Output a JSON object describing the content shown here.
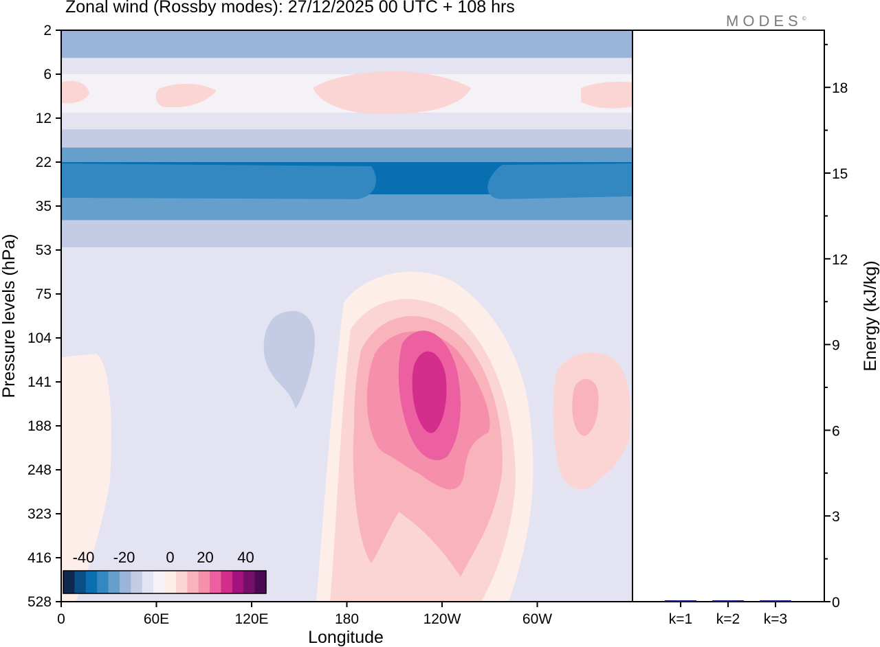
{
  "page": {
    "title": "Zonal wind (Rossby modes):  27/12/2025  00 UTC  + 108 hrs",
    "logo": "MODES",
    "logo_mark": "©"
  },
  "chart_data": [
    {
      "type": "heatmap",
      "title": "Zonal wind (Rossby modes)",
      "xlabel": "Longitude",
      "ylabel": "Pressure levels (hPa)",
      "x_ticks": [
        "0",
        "60E",
        "120E",
        "180",
        "120W",
        "60W"
      ],
      "x_tick_degrees": [
        0,
        60,
        120,
        180,
        240,
        300
      ],
      "xlim": [
        0,
        360
      ],
      "y_ticks": [
        "2",
        "6",
        "12",
        "22",
        "35",
        "53",
        "75",
        "104",
        "141",
        "188",
        "248",
        "323",
        "416",
        "528"
      ],
      "colorbar": {
        "tick_labels": [
          "-40",
          "-20",
          "0",
          "20",
          "40"
        ],
        "range": [
          -50,
          50
        ],
        "step": 6.25,
        "colors": [
          "#0d2a4e",
          "#0b4f86",
          "#0a6fb0",
          "#3388c2",
          "#669fcc",
          "#9ab5d9",
          "#c3cbe5",
          "#e3e3f1",
          "#f5f2f7",
          "#fdeeea",
          "#fbd5d4",
          "#f9b4bb",
          "#f58fac",
          "#ec5fa0",
          "#d42e8c",
          "#a3127c",
          "#741069",
          "#4d0a54"
        ]
      },
      "field_description": "zonal-mean band structure; strong easterlies near 22-35 hPa, westerly jet core near 120W at 141 hPa",
      "field_bands": [
        {
          "p_top": 2,
          "p_bottom": 4,
          "u": -18
        },
        {
          "p_top": 4,
          "p_bottom": 6,
          "u": -5
        },
        {
          "p_top": 6,
          "p_bottom": 11,
          "u": 5
        },
        {
          "p_top": 11,
          "p_bottom": 14,
          "u": -3
        },
        {
          "p_top": 14,
          "p_bottom": 18,
          "u": -12
        },
        {
          "p_top": 18,
          "p_bottom": 22,
          "u": -24
        },
        {
          "p_top": 22,
          "p_bottom": 31,
          "u": -32
        },
        {
          "p_top": 31,
          "p_bottom": 40,
          "u": -22
        },
        {
          "p_top": 40,
          "p_bottom": 56,
          "u": -12
        },
        {
          "p_top": 56,
          "p_bottom": 528,
          "u": -2
        }
      ],
      "field_features": [
        {
          "lon": 238,
          "p": 150,
          "u": 34,
          "label": "jet core"
        },
        {
          "lon": 328,
          "p": 170,
          "u": 14
        },
        {
          "lon": 128,
          "p": 120,
          "u": -9
        },
        {
          "lon": 30,
          "p": 10,
          "u": 6
        },
        {
          "lon": 200,
          "p": 8,
          "u": 6
        }
      ]
    },
    {
      "type": "bar",
      "ylabel": "Energy (kJ/kg)",
      "categories": [
        "k=1",
        "k=2",
        "k=3"
      ],
      "values": [
        0.03,
        0.02,
        0.04
      ],
      "ylim": [
        0,
        20
      ],
      "y_ticks": [
        "0",
        "3",
        "6",
        "9",
        "12",
        "15",
        "18"
      ],
      "color": "#1a1a80"
    }
  ]
}
